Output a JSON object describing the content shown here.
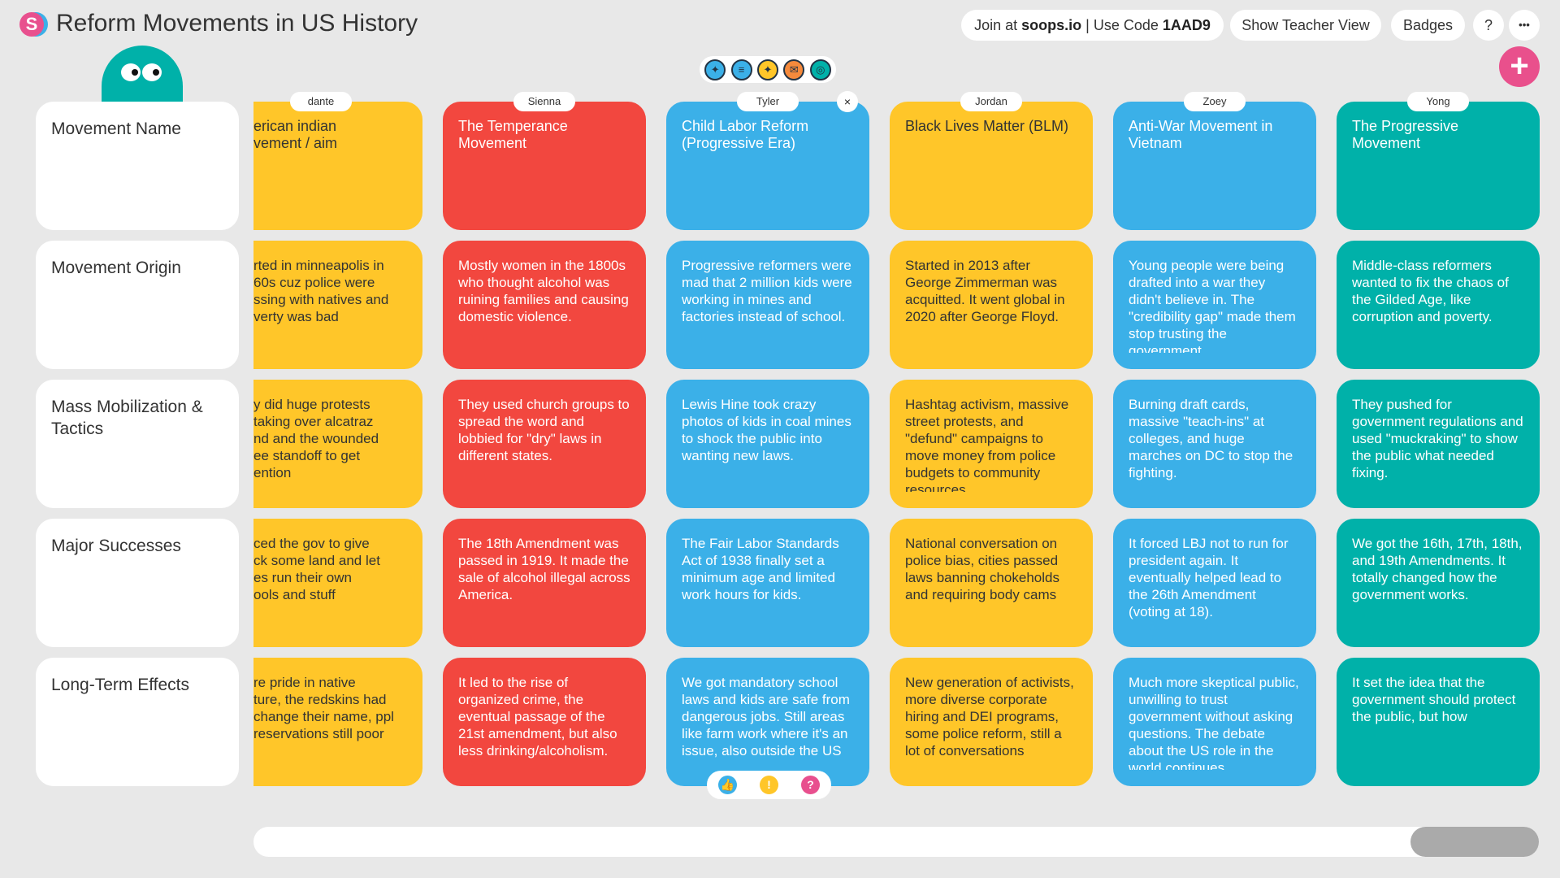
{
  "header": {
    "logo_letter": "S",
    "title": "Reform Movements in US History",
    "join_prefix": "Join at ",
    "join_site": "soops.io",
    "join_mid": " | Use Code ",
    "join_code": "1AAD9",
    "teacher_view": "Show Teacher View",
    "badges": "Badges",
    "help": "?",
    "more": "•••",
    "add": "+"
  },
  "toolbar_icons": [
    "lightbulb-icon",
    "document-icon",
    "idea-icon",
    "certificate-icon",
    "target-icon"
  ],
  "rows": [
    "Movement Name",
    "Movement Origin",
    "Mass Mobilization & Tactics",
    "Major Successes",
    "Long-Term Effects"
  ],
  "colors": {
    "yellow": "#FFC629",
    "red": "#F2473F",
    "blue": "#3BB0E8",
    "teal": "#00B1A9",
    "background": "#E8E8E8",
    "accent": "#E9508C"
  },
  "columns": [
    {
      "student": "dante",
      "color": "#FFC629",
      "text_color": "#333333",
      "clipped": true,
      "cells": [
        "erican indian\nvement / aim",
        "rted in minneapolis in\n 60s cuz police were\nssing with natives and\nverty was bad",
        "y did huge protests\n taking over alcatraz\nnd and the wounded\nee standoff to get\nention",
        "ced the gov to give\nck some land and let\nes run their own\nools and stuff",
        "re pride in native\nture, the redskins had\nchange their name, ppl\n reservations still poor"
      ]
    },
    {
      "student": "Sienna",
      "color": "#F2473F",
      "text_color": "#ffffff",
      "cells": [
        "The Temperance Movement",
        "Mostly women in the 1800s who thought alcohol was ruining families and causing domestic violence.",
        "They used church groups to spread the word and lobbied for \"dry\" laws in different states.",
        "The 18th Amendment was passed in 1919. It made the sale of alcohol illegal across America.",
        "It led to the rise of organized crime, the eventual passage of the 21st amendment, but also less drinking/alcoholism."
      ]
    },
    {
      "student": "Tyler",
      "color": "#3BB0E8",
      "text_color": "#ffffff",
      "has_close": true,
      "close": "×",
      "cells": [
        "Child Labor Reform (Progressive Era)",
        "Progressive reformers were mad that 2 million kids were working in mines and factories instead of school.",
        "Lewis Hine took crazy photos of kids in coal mines to shock the public into wanting new laws.",
        "The Fair Labor Standards Act of 1938 finally set a minimum age and limited work hours for kids.",
        "We got mandatory school laws and kids are safe from dangerous jobs. Still areas like farm work where it's an issue, also outside the US"
      ]
    },
    {
      "student": "Jordan",
      "color": "#FFC629",
      "text_color": "#333333",
      "cells": [
        "Black Lives Matter (BLM)",
        "Started in 2013 after George Zimmerman was acquitted. It went global in 2020 after George Floyd.",
        "Hashtag activism, massive street protests, and \"defund\" campaigns to move money from police budgets to community resources",
        "National conversation on police bias, cities passed laws banning chokeholds and requiring body cams",
        "New generation of activists, more diverse corporate hiring and DEI programs, some police reform, still a lot of conversations"
      ]
    },
    {
      "student": "Zoey",
      "color": "#3BB0E8",
      "text_color": "#ffffff",
      "cells": [
        "Anti-War Movement in Vietnam",
        "Young people were being drafted into a war they didn't believe in. The \"credibility gap\" made them stop trusting the government.",
        "Burning draft cards, massive \"teach-ins\" at colleges, and huge marches on DC to stop the fighting.",
        "It forced LBJ not to run for president again.  It eventually helped lead to the 26th Amendment (voting at 18).",
        "Much more skeptical public, unwilling to trust government without asking questions. The debate about the US role in the world continues"
      ]
    },
    {
      "student": "Yong",
      "color": "#00B1A9",
      "text_color": "#ffffff",
      "cells": [
        "The Progressive Movement",
        "Middle-class reformers wanted to fix the chaos of the Gilded Age, like corruption and poverty.",
        "They pushed for government regulations and used \"muckraking\" to show the public what needed fixing.",
        "We got the 16th, 17th, 18th, and 19th Amendments. It totally changed how the government works.",
        "It set the idea that the government should protect the public, but how"
      ]
    }
  ],
  "reactions": [
    {
      "icon": "thumbs-up-icon",
      "glyph": "👍",
      "color": "#3BB0E8"
    },
    {
      "icon": "lightbulb-icon",
      "glyph": "!",
      "color": "#FFC629"
    },
    {
      "icon": "question-icon",
      "glyph": "?",
      "color": "#E8508E"
    }
  ],
  "scrollbar": {
    "position_percent": 100
  }
}
